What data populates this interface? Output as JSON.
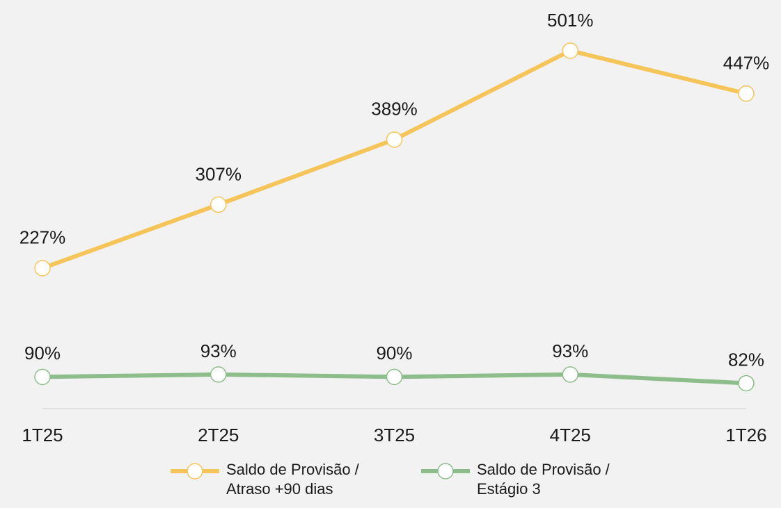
{
  "chart_data": {
    "type": "line",
    "categories": [
      "1T25",
      "2T25",
      "3T25",
      "4T25",
      "1T26"
    ],
    "series": [
      {
        "name": "Saldo de Provisão / Atraso +90 dias",
        "color": "#f5c55a",
        "values": [
          227,
          307,
          389,
          501,
          447
        ],
        "value_labels": [
          "227%",
          "307%",
          "389%",
          "501%",
          "447%"
        ]
      },
      {
        "name": "Saldo de Provisão / Estágio 3",
        "color": "#8dbd8a",
        "values": [
          90,
          93,
          90,
          93,
          82
        ],
        "value_labels": [
          "90%",
          "93%",
          "90%",
          "93%",
          "82%"
        ]
      }
    ],
    "ylim": [
      50,
      550
    ],
    "legend": "bottom"
  }
}
